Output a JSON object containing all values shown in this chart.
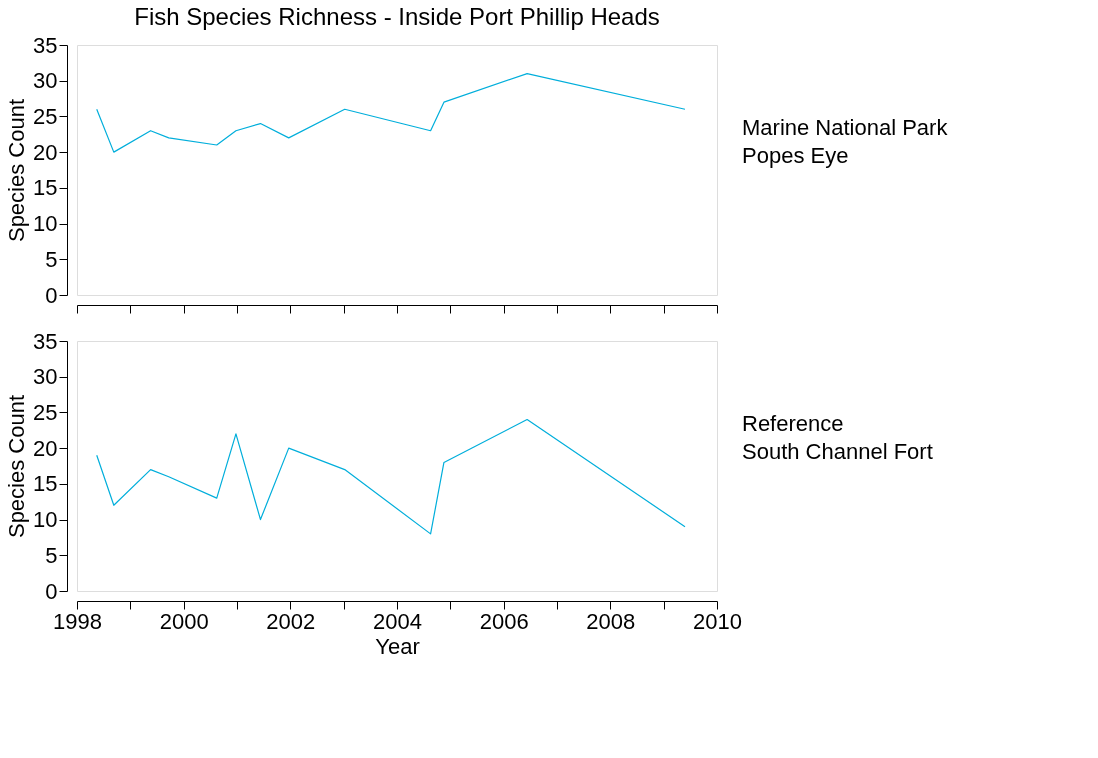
{
  "chart_data": [
    {
      "type": "line",
      "title": "Fish Species Richness - Inside Port Phillip Heads",
      "ylabel": "Species Count",
      "annotations": [
        "Marine National Park",
        "Popes Eye"
      ],
      "x": [
        1998.37,
        1998.69,
        1999.38,
        1999.72,
        2000.62,
        2000.98,
        2001.44,
        2001.97,
        2003.02,
        2004.63,
        2004.88,
        2006.44,
        2009.4
      ],
      "series": [
        {
          "color": "#00aedb",
          "values": [
            26,
            20,
            23,
            22,
            21,
            23,
            24,
            22,
            26,
            23,
            27,
            31,
            26
          ]
        }
      ],
      "xlim": [
        1998,
        2010
      ],
      "xticks": [
        {
          "value": 1998,
          "label": null
        },
        {
          "value": 1999,
          "label": null
        },
        {
          "value": 2000,
          "label": null
        },
        {
          "value": 2001,
          "label": null
        },
        {
          "value": 2002,
          "label": null
        },
        {
          "value": 2003,
          "label": null
        },
        {
          "value": 2004,
          "label": null
        },
        {
          "value": 2005,
          "label": null
        },
        {
          "value": 2006,
          "label": null
        },
        {
          "value": 2007,
          "label": null
        },
        {
          "value": 2008,
          "label": null
        },
        {
          "value": 2009,
          "label": null
        },
        {
          "value": 2010,
          "label": null
        }
      ],
      "ylim": [
        0,
        35
      ],
      "yticks": [
        0,
        5,
        10,
        15,
        20,
        25,
        30,
        35
      ],
      "tick_labels": "y",
      "grid": false
    },
    {
      "type": "line",
      "xlabel": "Year",
      "ylabel": "Species Count",
      "annotations": [
        "Reference",
        "South Channel Fort"
      ],
      "x": [
        1998.37,
        1998.69,
        1999.38,
        1999.72,
        2000.62,
        2000.98,
        2001.44,
        2001.97,
        2003.02,
        2004.63,
        2004.88,
        2006.44,
        2009.4
      ],
      "series": [
        {
          "color": "#00aedb",
          "values": [
            19,
            12,
            17,
            16,
            13,
            22,
            10,
            20,
            17,
            8,
            18,
            24,
            9
          ]
        }
      ],
      "xlim": [
        1998,
        2010
      ],
      "xticks": [
        1998,
        {
          "value": 1999,
          "label": null
        },
        2000,
        {
          "value": 2001,
          "label": null
        },
        2002,
        {
          "value": 2003,
          "label": null
        },
        2004,
        {
          "value": 2005,
          "label": null
        },
        2006,
        {
          "value": 2007,
          "label": null
        },
        2008,
        {
          "value": 2009,
          "label": null
        },
        2010
      ],
      "ylim": [
        0,
        35
      ],
      "yticks": [
        0,
        5,
        10,
        15,
        20,
        25,
        30,
        35
      ],
      "grid": false
    }
  ]
}
